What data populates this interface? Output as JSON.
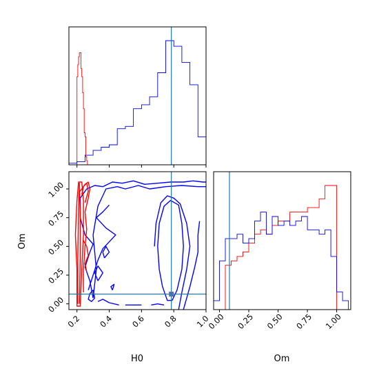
{
  "chart_data": {
    "type": "corner",
    "parameters": [
      "H0",
      "Om"
    ],
    "truth": {
      "H0": 0.785,
      "Om": 0.085
    },
    "colors": {
      "red_series": "#ff0000",
      "blue_series": "#0000ff",
      "truth": "#1f77b4"
    },
    "panels": [
      {
        "id": "hist-H0",
        "type": "histogram",
        "x_range": [
          0.15,
          1.0
        ],
        "bin_edges": [
          0.15,
          0.2,
          0.25,
          0.3,
          0.35,
          0.4,
          0.45,
          0.5,
          0.55,
          0.6,
          0.65,
          0.7,
          0.75,
          0.8,
          0.85,
          0.9,
          0.95,
          1.0
        ],
        "series": [
          {
            "color": "red",
            "bin_edges": [
              0.19,
              0.2,
              0.205,
              0.21,
              0.215,
              0.22,
              0.225,
              0.23,
              0.235,
              0.24,
              0.245,
              0.25,
              0.255,
              0.26,
              0.265,
              0.27
            ],
            "counts": [
              0,
              110,
              125,
              135,
              140,
              140,
              120,
              110,
              90,
              70,
              40,
              35,
              10,
              5,
              0
            ]
          },
          {
            "color": "blue",
            "counts": [
              2,
              4,
              12,
              18,
              22,
              25,
              45,
              48,
              70,
              75,
              85,
              115,
              155,
              148,
              128,
              100,
              35
            ]
          }
        ]
      },
      {
        "id": "contour-H0-Om",
        "type": "contour",
        "x_range": [
          0.15,
          1.0
        ],
        "y_range": [
          -0.05,
          1.15
        ],
        "xticks": [
          "0.2",
          "0.4",
          "0.6",
          "0.8",
          "1.0"
        ],
        "yticks": [
          "0.00",
          "0.25",
          "0.50",
          "0.75",
          "1.00"
        ],
        "xlabel": "H0",
        "ylabel": "Om",
        "truth_point": [
          0.785,
          0.085
        ]
      },
      {
        "id": "hist-Om",
        "type": "histogram",
        "x_range": [
          -0.05,
          1.12
        ],
        "bin_edges": [
          -0.05,
          0.0,
          0.05,
          0.1,
          0.15,
          0.2,
          0.25,
          0.3,
          0.35,
          0.4,
          0.45,
          0.5,
          0.55,
          0.6,
          0.65,
          0.7,
          0.75,
          0.8,
          0.85,
          0.9,
          0.95,
          1.0,
          1.05,
          1.1
        ],
        "xticks": [
          "0.00",
          "0.25",
          "0.50",
          "0.75",
          "1.00"
        ],
        "xlabel": "Om",
        "series": [
          {
            "color": "red",
            "counts": [
              0,
              0,
              50,
              55,
              60,
              65,
              75,
              85,
              90,
              85,
              95,
              100,
              100,
              110,
              110,
              110,
              115,
              115,
              125,
              140,
              140,
              0,
              0
            ]
          },
          {
            "color": "blue",
            "counts": [
              10,
              55,
              80,
              80,
              85,
              75,
              80,
              100,
              110,
              85,
              105,
              95,
              100,
              95,
              100,
              105,
              90,
              90,
              85,
              90,
              60,
              20,
              10
            ]
          }
        ]
      }
    ]
  }
}
